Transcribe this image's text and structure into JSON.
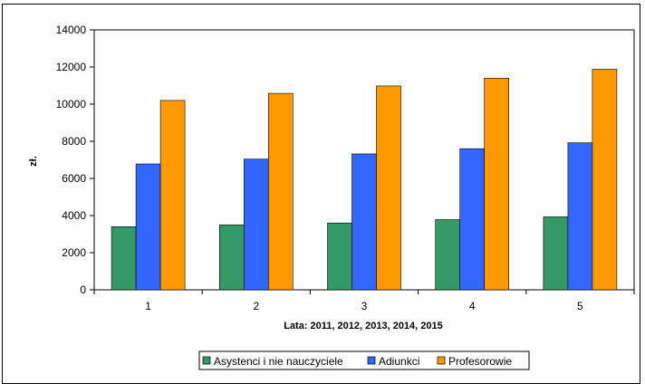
{
  "chart_data": {
    "type": "bar",
    "categories": [
      "1",
      "2",
      "3",
      "4",
      "5"
    ],
    "series": [
      {
        "name": "Asystenci i nie nauczyciele",
        "values": [
          3400,
          3500,
          3600,
          3780,
          3930
        ],
        "color": "#339966"
      },
      {
        "name": "Adiunkci",
        "values": [
          6780,
          7040,
          7320,
          7600,
          7920
        ],
        "color": "#3366ff"
      },
      {
        "name": "Profesorowie",
        "values": [
          10200,
          10580,
          10980,
          11400,
          11880
        ],
        "color": "#ff9900"
      }
    ],
    "xlabel": "Lata: 2011, 2012, 2013, 2014, 2015",
    "ylabel": "zł.",
    "ylim": [
      0,
      14000
    ],
    "yticks": [
      "0",
      "2000",
      "4000",
      "6000",
      "8000",
      "10000",
      "12000",
      "14000"
    ],
    "grid": false,
    "legend_position": "bottom"
  }
}
